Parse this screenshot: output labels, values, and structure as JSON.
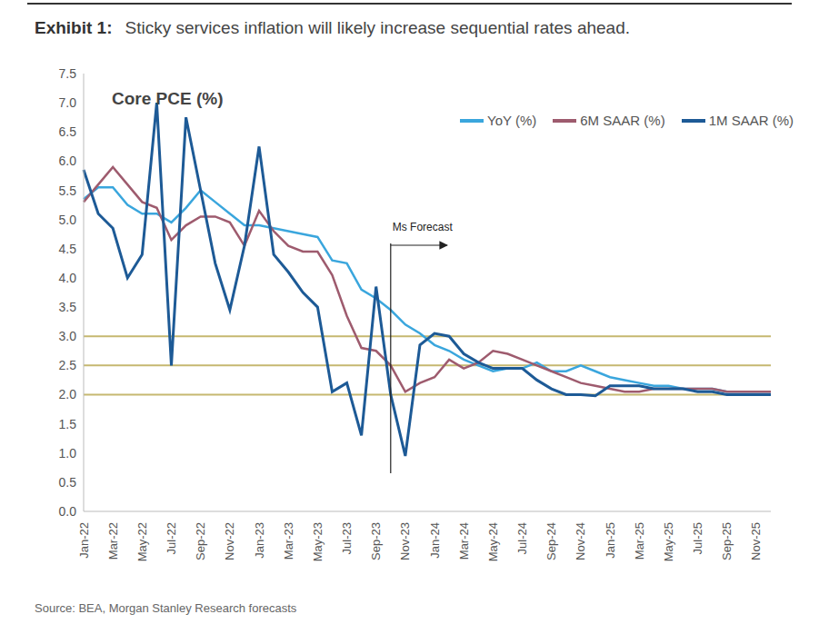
{
  "chart_data": {
    "type": "line",
    "header": "Exhibit 1:",
    "subtitle": "Sticky services inflation will likely increase sequential rates ahead.",
    "title": "Core PCE (%)",
    "source": "Source: BEA, Morgan Stanley Research forecasts",
    "categories": [
      "Jan-22",
      null,
      "Mar-22",
      null,
      "May-22",
      null,
      "Jul-22",
      null,
      "Sep-22",
      null,
      "Nov-22",
      null,
      "Jan-23",
      null,
      "Mar-23",
      null,
      "May-23",
      null,
      "Jul-23",
      null,
      "Sep-23",
      null,
      "Nov-23",
      null,
      "Jan-24",
      null,
      "Mar-24",
      null,
      "May-24",
      null,
      "Jul-24",
      null,
      "Sep-24",
      null,
      "Nov-24",
      null,
      "Jan-25",
      null,
      "Mar-25",
      null,
      "May-25",
      null,
      "Jul-25",
      null,
      "Sep-25",
      null,
      "Nov-25",
      null
    ],
    "series": [
      {
        "name": "YoY (%)",
        "color": "#3AA6DD",
        "values": [
          5.35,
          5.55,
          5.55,
          5.25,
          5.1,
          5.1,
          4.95,
          5.2,
          5.5,
          5.3,
          5.1,
          4.9,
          4.9,
          4.85,
          4.8,
          4.75,
          4.7,
          4.3,
          4.25,
          3.8,
          3.65,
          3.45,
          3.2,
          3.05,
          2.85,
          2.75,
          2.6,
          2.5,
          2.4,
          2.45,
          2.45,
          2.55,
          2.4,
          2.4,
          2.5,
          2.4,
          2.3,
          2.25,
          2.2,
          2.15,
          2.15,
          2.1,
          2.1,
          2.1,
          2.05,
          2.05,
          2.05,
          2.05
        ]
      },
      {
        "name": "6M SAAR (%)",
        "color": "#9E5B6E",
        "values": [
          5.3,
          5.6,
          5.9,
          5.6,
          5.3,
          5.2,
          4.65,
          4.9,
          5.05,
          5.05,
          4.95,
          4.55,
          5.15,
          4.8,
          4.55,
          4.45,
          4.45,
          4.05,
          3.35,
          2.8,
          2.75,
          2.5,
          2.05,
          2.2,
          2.3,
          2.6,
          2.45,
          2.55,
          2.75,
          2.7,
          2.6,
          2.5,
          2.4,
          2.3,
          2.2,
          2.15,
          2.1,
          2.05,
          2.05,
          2.1,
          2.1,
          2.1,
          2.1,
          2.1,
          2.05,
          2.05,
          2.05,
          2.05
        ]
      },
      {
        "name": "1M SAAR (%)",
        "color": "#1D5A96",
        "values": [
          5.85,
          5.1,
          4.85,
          4.0,
          4.4,
          7.0,
          2.5,
          6.75,
          5.5,
          4.25,
          3.45,
          4.55,
          6.25,
          4.4,
          4.1,
          3.75,
          3.5,
          2.05,
          2.2,
          1.3,
          3.85,
          2.0,
          0.95,
          2.85,
          3.05,
          3.0,
          2.7,
          2.55,
          2.45,
          2.45,
          2.45,
          2.25,
          2.1,
          2.0,
          2.0,
          1.98,
          2.15,
          2.15,
          2.15,
          2.1,
          2.1,
          2.1,
          2.05,
          2.05,
          2.0,
          2.0,
          2.0,
          2.0
        ]
      }
    ],
    "ylim": [
      0,
      7.5
    ],
    "yticks": [
      {
        "value": 0,
        "label": "0.0"
      },
      0.5,
      {
        "value": 1,
        "label": "1.0"
      },
      1.5,
      {
        "value": 2,
        "label": "2.0"
      },
      2.5,
      {
        "value": 3,
        "label": "3.0"
      },
      3.5,
      {
        "value": 4,
        "label": "4.0"
      },
      4.5,
      {
        "value": 5,
        "label": "5.0"
      },
      5.5,
      {
        "value": 6,
        "label": "6.0"
      },
      6.5,
      {
        "value": 7,
        "label": "7.0"
      },
      7.5
    ],
    "grid": false,
    "legend": "top right",
    "reference_lines": [
      2,
      2.5,
      3
    ],
    "annotations": [
      {
        "text": "Ms Forecast",
        "x": 21
      }
    ]
  }
}
